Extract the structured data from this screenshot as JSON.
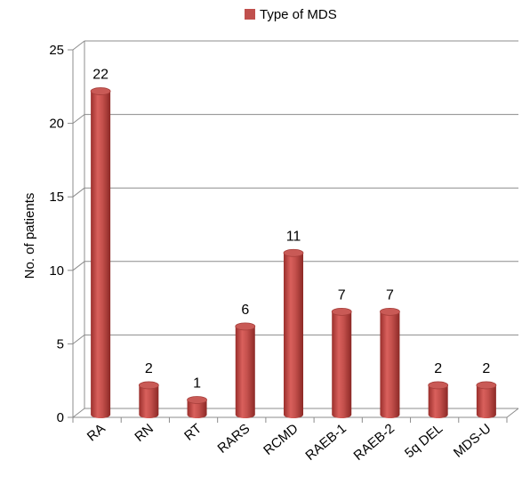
{
  "chart_data": {
    "type": "bar",
    "title": "",
    "xlabel": "",
    "ylabel": "No. of patients",
    "ylim": [
      0,
      25
    ],
    "yticks": [
      0,
      5,
      10,
      15,
      20,
      25
    ],
    "grid": true,
    "legend_position": "top",
    "style": "3d-cylinder",
    "categories": [
      "RA",
      "RN",
      "RT",
      "RARS",
      "RCMD",
      "RAEB-1",
      "RAEB-2",
      "5q DEL",
      "MDS-U"
    ],
    "series": [
      {
        "name": "Type of MDS",
        "color": "#c0504d",
        "values": [
          22,
          2,
          1,
          6,
          11,
          7,
          7,
          2,
          2
        ]
      }
    ]
  }
}
